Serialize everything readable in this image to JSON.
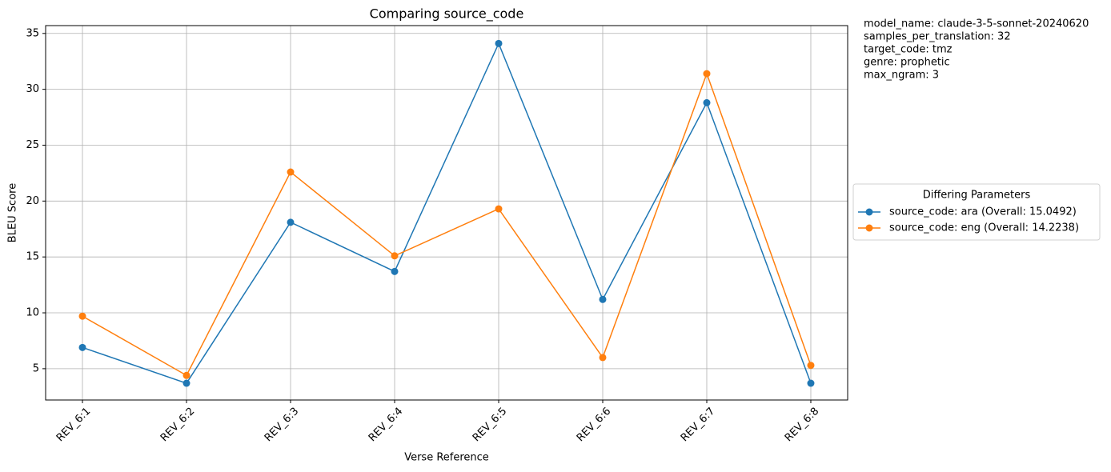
{
  "chart_data": {
    "type": "line",
    "title": "Comparing source_code",
    "x_label": "Verse Reference",
    "y_label": "BLEU Score",
    "categories": [
      "REV_6:1",
      "REV_6:2",
      "REV_6:3",
      "REV_6:4",
      "REV_6:5",
      "REV_6:6",
      "REV_6:7",
      "REV_6:8"
    ],
    "series": [
      {
        "name": "source_code: ara (Overall: 15.0492)",
        "color": "#1f77b4",
        "values": [
          6.9,
          3.7,
          18.1,
          13.7,
          34.1,
          11.2,
          28.8,
          3.7
        ]
      },
      {
        "name": "source_code: eng (Overall: 14.2238)",
        "color": "#ff7f0e",
        "values": [
          9.7,
          4.4,
          22.6,
          15.1,
          19.3,
          6.0,
          31.4,
          5.3
        ]
      }
    ],
    "ylim": [
      2.2,
      35.7
    ],
    "yticks": [
      5,
      10,
      15,
      20,
      25,
      30,
      35
    ],
    "grid": true,
    "legend_title": "Differing Parameters",
    "legend_position": "right",
    "annotations": [
      "model_name: claude-3-5-sonnet-20240620",
      "samples_per_translation: 32",
      "target_code: tmz",
      "genre: prophetic",
      "max_ngram: 3"
    ]
  }
}
